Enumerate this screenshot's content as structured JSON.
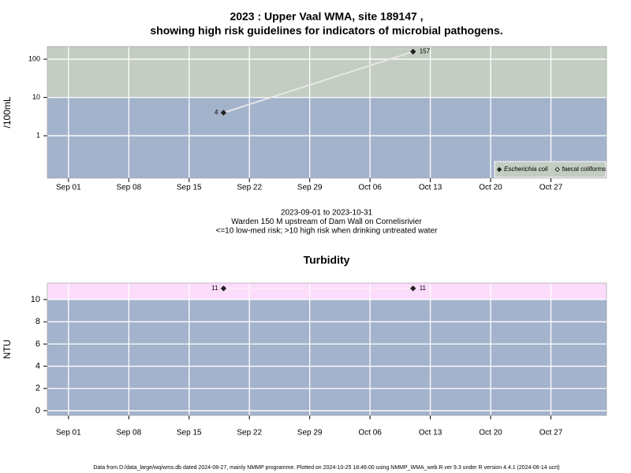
{
  "chart_data": [
    {
      "type": "line",
      "title": "2023 : Upper Vaal WMA, site 189147 ,",
      "subtitle": "showing high risk guidelines for indicators of microbial pathogens.",
      "ylabel": "/100mL",
      "log_y": true,
      "x": [
        "2023-09-19",
        "2023-10-11"
      ],
      "series": [
        {
          "name": "Escherichia coli",
          "color": "#222222",
          "line_color": "#e6e6e6",
          "marker": "filled",
          "values": [
            4,
            157
          ]
        },
        {
          "name": "faecal coliforms",
          "color": "#222222",
          "line_color": "#e6e6e6",
          "marker": "open",
          "values": [
            null,
            null
          ]
        }
      ],
      "xlim": [
        "2023-08-29T13:00",
        "2023-11-02T11:00"
      ],
      "xticks": [
        {
          "value": "2023-09-01",
          "label": "Sep 01"
        },
        {
          "value": "2023-09-08",
          "label": "Sep 08"
        },
        {
          "value": "2023-09-15",
          "label": "Sep 15"
        },
        {
          "value": "2023-09-22",
          "label": "Sep 22"
        },
        {
          "value": "2023-09-29",
          "label": "Sep 29"
        },
        {
          "value": "2023-10-06",
          "label": "Oct 06"
        },
        {
          "value": "2023-10-13",
          "label": "Oct 13"
        },
        {
          "value": "2023-10-20",
          "label": "Oct 20"
        },
        {
          "value": "2023-10-27",
          "label": "Oct 27"
        }
      ],
      "ylim": [
        0.078,
        214
      ],
      "yticks": [
        1,
        10,
        100
      ],
      "threshold": 10,
      "above_color": "#c3cdc1",
      "below_color": "#a3b3cc",
      "grid": true,
      "legend": "bottom-right",
      "notes": [
        "2023-09-01 to 2023-10-31",
        "Warden 150 M upstream of Dam Wall on Cornelisrivier",
        "<=10 low-med risk; >10 high risk when drinking untreated water"
      ]
    },
    {
      "type": "line",
      "title": "Turbidity",
      "ylabel": "NTU",
      "log_y": false,
      "x": [
        "2023-09-19",
        "2023-10-11"
      ],
      "values": [
        11,
        11
      ],
      "color": "#222222",
      "line_color": "#fbe7f6",
      "xlim": [
        "2023-08-29T13:00",
        "2023-11-02T11:00"
      ],
      "xticks": [
        {
          "value": "2023-09-01",
          "label": "Sep 01"
        },
        {
          "value": "2023-09-08",
          "label": "Sep 08"
        },
        {
          "value": "2023-09-15",
          "label": "Sep 15"
        },
        {
          "value": "2023-09-22",
          "label": "Sep 22"
        },
        {
          "value": "2023-09-29",
          "label": "Sep 29"
        },
        {
          "value": "2023-10-06",
          "label": "Oct 06"
        },
        {
          "value": "2023-10-13",
          "label": "Oct 13"
        },
        {
          "value": "2023-10-20",
          "label": "Oct 20"
        },
        {
          "value": "2023-10-27",
          "label": "Oct 27"
        }
      ],
      "ylim": [
        -0.43,
        11.49
      ],
      "yticks": [
        0,
        2,
        4,
        6,
        8,
        10
      ],
      "threshold": 10,
      "above_color": "#fcdcfb",
      "below_color": "#a3b3cc",
      "grid": true
    }
  ],
  "footer": "Data from D:/data_large/wq/wms.db dated 2024-08-27, mainly NMMP programme. Plotted on 2024-10-25 18:46:00 using NMMP_WMA_web.R ver 9.3 under R version 4.4.1 (2024-06-14 ucrt)"
}
